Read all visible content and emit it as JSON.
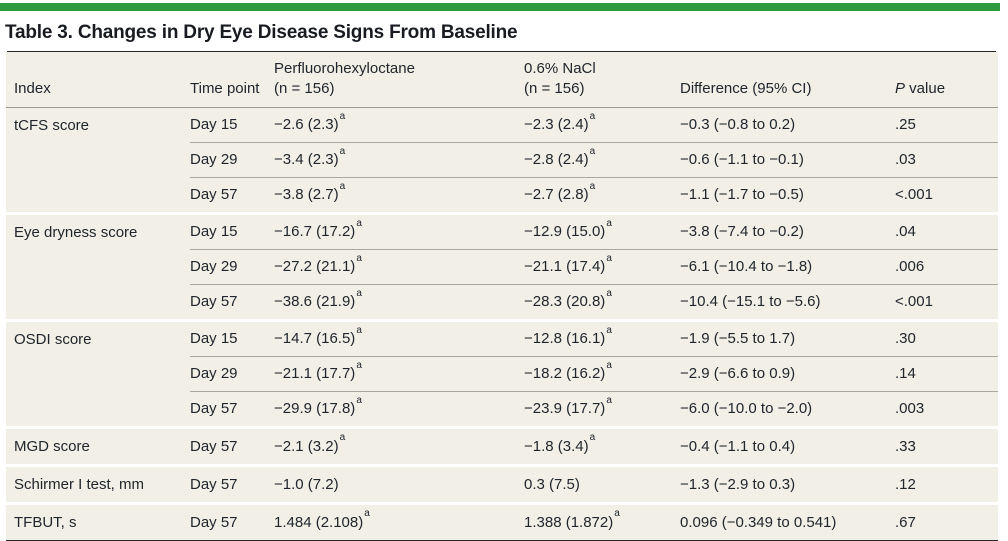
{
  "colors": {
    "accent_green": "#2d9a3f",
    "table_background": "#f2f0e6",
    "text": "#20262e",
    "dark_rule": "#25272b",
    "gray_rule": "#9b9a92",
    "white_group_gap": "#ffffff"
  },
  "title": "Table 3. Changes in Dry Eye Disease Signs From Baseline",
  "header": {
    "index": "Index",
    "time_point": "Time point",
    "pfho_line1": "Perfluorohexyloctane",
    "pfho_line2": "(n = 156)",
    "nacl_line1": "0.6% NaCl",
    "nacl_line2": "(n = 156)",
    "difference": "Difference (95% CI)",
    "p_italic": "P",
    "p_rest": " value"
  },
  "footnote_marker": "a",
  "groups": [
    {
      "index": "tCFS score",
      "rows": [
        {
          "time": "Day 15",
          "pfho": "−2.6 (2.3)",
          "pfho_sup": "a",
          "nacl": "−2.3 (2.4)",
          "nacl_sup": "a",
          "diff": "−0.3 (−0.8 to 0.2)",
          "p": ".25"
        },
        {
          "time": "Day 29",
          "pfho": "−3.4 (2.3)",
          "pfho_sup": "a",
          "nacl": "−2.8 (2.4)",
          "nacl_sup": "a",
          "diff": "−0.6 (−1.1 to −0.1)",
          "p": ".03"
        },
        {
          "time": "Day 57",
          "pfho": "−3.8 (2.7)",
          "pfho_sup": "a",
          "nacl": "−2.7 (2.8)",
          "nacl_sup": "a",
          "diff": "−1.1 (−1.7 to −0.5)",
          "p": "<.001"
        }
      ]
    },
    {
      "index": "Eye dryness score",
      "rows": [
        {
          "time": "Day 15",
          "pfho": "−16.7 (17.2)",
          "pfho_sup": "a",
          "nacl": "−12.9 (15.0)",
          "nacl_sup": "a",
          "diff": "−3.8 (−7.4 to −0.2)",
          "p": ".04"
        },
        {
          "time": "Day 29",
          "pfho": "−27.2 (21.1)",
          "pfho_sup": "a",
          "nacl": "−21.1 (17.4)",
          "nacl_sup": "a",
          "diff": "−6.1 (−10.4 to −1.8)",
          "p": ".006"
        },
        {
          "time": "Day 57",
          "pfho": "−38.6 (21.9)",
          "pfho_sup": "a",
          "nacl": "−28.3 (20.8)",
          "nacl_sup": "a",
          "diff": "−10.4 (−15.1 to −5.6)",
          "p": "<.001"
        }
      ]
    },
    {
      "index": "OSDI score",
      "rows": [
        {
          "time": "Day 15",
          "pfho": "−14.7 (16.5)",
          "pfho_sup": "a",
          "nacl": "−12.8 (16.1)",
          "nacl_sup": "a",
          "diff": "−1.9 (−5.5 to 1.7)",
          "p": ".30"
        },
        {
          "time": "Day 29",
          "pfho": "−21.1 (17.7)",
          "pfho_sup": "a",
          "nacl": "−18.2 (16.2)",
          "nacl_sup": "a",
          "diff": "−2.9 (−6.6 to 0.9)",
          "p": ".14"
        },
        {
          "time": "Day 57",
          "pfho": "−29.9 (17.8)",
          "pfho_sup": "a",
          "nacl": "−23.9 (17.7)",
          "nacl_sup": "a",
          "diff": "−6.0 (−10.0 to −2.0)",
          "p": ".003"
        }
      ]
    },
    {
      "index": "MGD score",
      "rows": [
        {
          "time": "Day 57",
          "pfho": "−2.1 (3.2)",
          "pfho_sup": "a",
          "nacl": "−1.8 (3.4)",
          "nacl_sup": "a",
          "diff": "−0.4 (−1.1 to 0.4)",
          "p": ".33"
        }
      ]
    },
    {
      "index": "Schirmer I test, mm",
      "rows": [
        {
          "time": "Day 57",
          "pfho": "−1.0 (7.2)",
          "pfho_sup": "",
          "nacl": "0.3 (7.5)",
          "nacl_sup": "",
          "diff": "−1.3 (−2.9 to 0.3)",
          "p": ".12"
        }
      ]
    },
    {
      "index": "TFBUT, s",
      "rows": [
        {
          "time": "Day 57",
          "pfho": "1.484 (2.108)",
          "pfho_sup": "a",
          "nacl": "1.388 (1.872)",
          "nacl_sup": "a",
          "diff": "0.096 (−0.349 to 0.541)",
          "p": ".67"
        }
      ]
    }
  ]
}
